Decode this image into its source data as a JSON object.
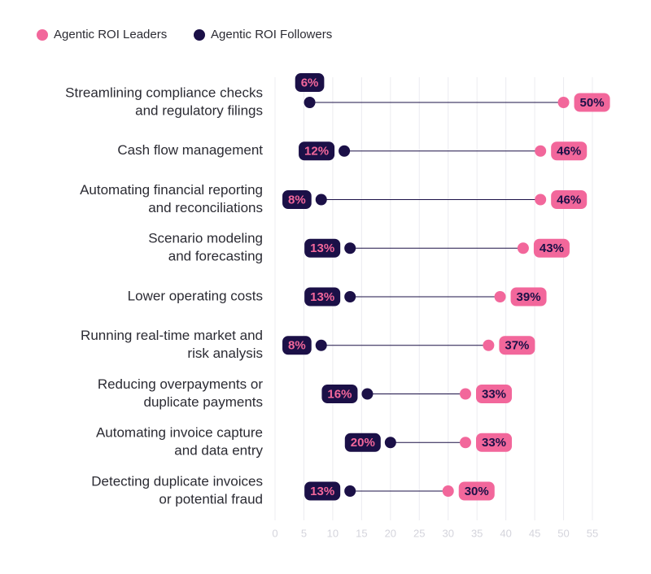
{
  "chart_data": {
    "type": "dumbbell",
    "categories": [
      [
        "Streamlining compliance checks",
        "and regulatory filings"
      ],
      [
        "Cash flow management"
      ],
      [
        "Automating financial reporting",
        "and reconciliations"
      ],
      [
        "Scenario modeling",
        "and forecasting"
      ],
      [
        "Lower operating costs"
      ],
      [
        "Running real-time market and",
        "risk analysis"
      ],
      [
        "Reducing overpayments or",
        "duplicate payments"
      ],
      [
        "Automating invoice capture",
        "and data entry"
      ],
      [
        "Detecting duplicate invoices",
        "or potential fraud"
      ]
    ],
    "series": [
      {
        "name": "Agentic ROI Leaders",
        "color": "#f2679b",
        "label_text_color": "#1b1047",
        "values": [
          50,
          46,
          46,
          43,
          39,
          37,
          33,
          33,
          30
        ],
        "value_labels": [
          "50%",
          "46%",
          "46%",
          "43%",
          "39%",
          "37%",
          "33%",
          "33%",
          "30%"
        ]
      },
      {
        "name": "Agentic ROI Followers",
        "color": "#1b1047",
        "label_text_color": "#f2679b",
        "values": [
          6,
          12,
          8,
          13,
          13,
          8,
          16,
          20,
          13
        ],
        "value_labels": [
          "6%",
          "12%",
          "8%",
          "13%",
          "13%",
          "8%",
          "16%",
          "20%",
          "13%"
        ]
      }
    ],
    "xlim": [
      0,
      55
    ],
    "xticks": [
      0,
      5,
      10,
      15,
      20,
      25,
      30,
      35,
      40,
      45,
      50,
      55
    ],
    "grid": true,
    "legend": "top-left"
  }
}
